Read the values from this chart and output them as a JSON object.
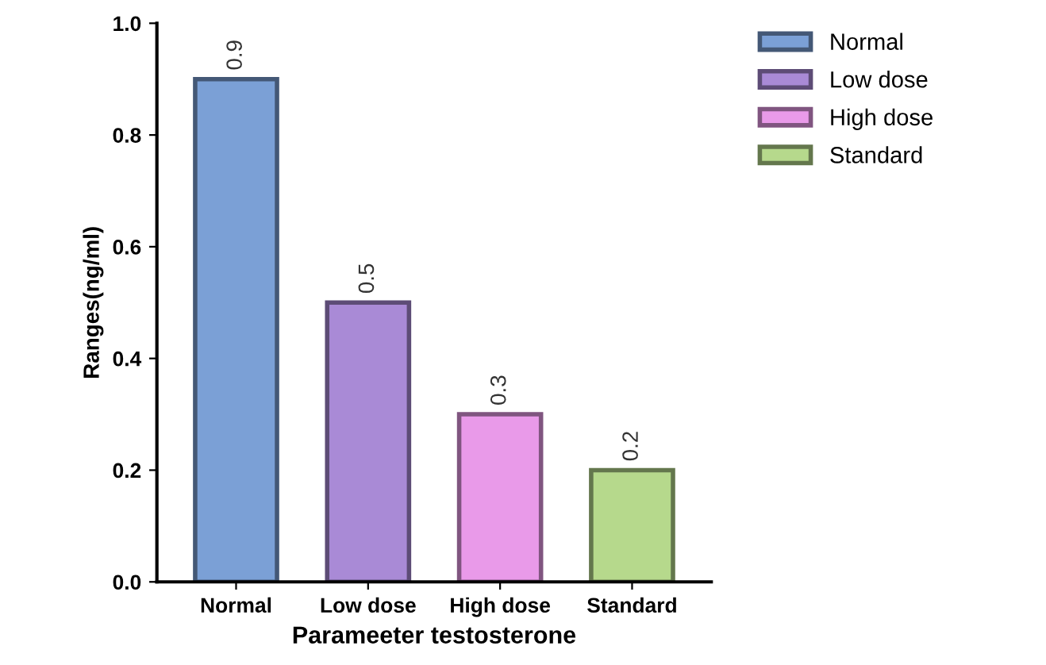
{
  "chart_data": {
    "type": "bar",
    "xlabel": "Parameeter testosterone",
    "ylabel": "Ranges(ng/ml)",
    "categories": [
      "Normal",
      "Low dose",
      "High dose",
      "Standard"
    ],
    "series": [
      {
        "name": "Normal",
        "color": "#7ba0d6",
        "values": [
          0.9,
          null,
          null,
          null
        ]
      },
      {
        "name": "Low dose",
        "color": "#a98ad6",
        "values": [
          null,
          0.5,
          null,
          null
        ]
      },
      {
        "name": "High dose",
        "color": "#e99ae9",
        "values": [
          null,
          null,
          0.3,
          null
        ]
      },
      {
        "name": "Standard",
        "color": "#b6d98c",
        "values": [
          null,
          null,
          null,
          0.2
        ]
      }
    ],
    "ylim": [
      0,
      1.0
    ],
    "yticks": [
      {
        "value": 0,
        "label": "0.0"
      },
      {
        "value": 0.2,
        "label": "0.2"
      },
      {
        "value": 0.4,
        "label": "0.4"
      },
      {
        "value": 0.6,
        "label": "0.6"
      },
      {
        "value": 0.8,
        "label": "0.8"
      },
      {
        "value": 1.0,
        "label": "1.0"
      }
    ],
    "data_labels": true,
    "legend": "top right",
    "grid": false
  }
}
